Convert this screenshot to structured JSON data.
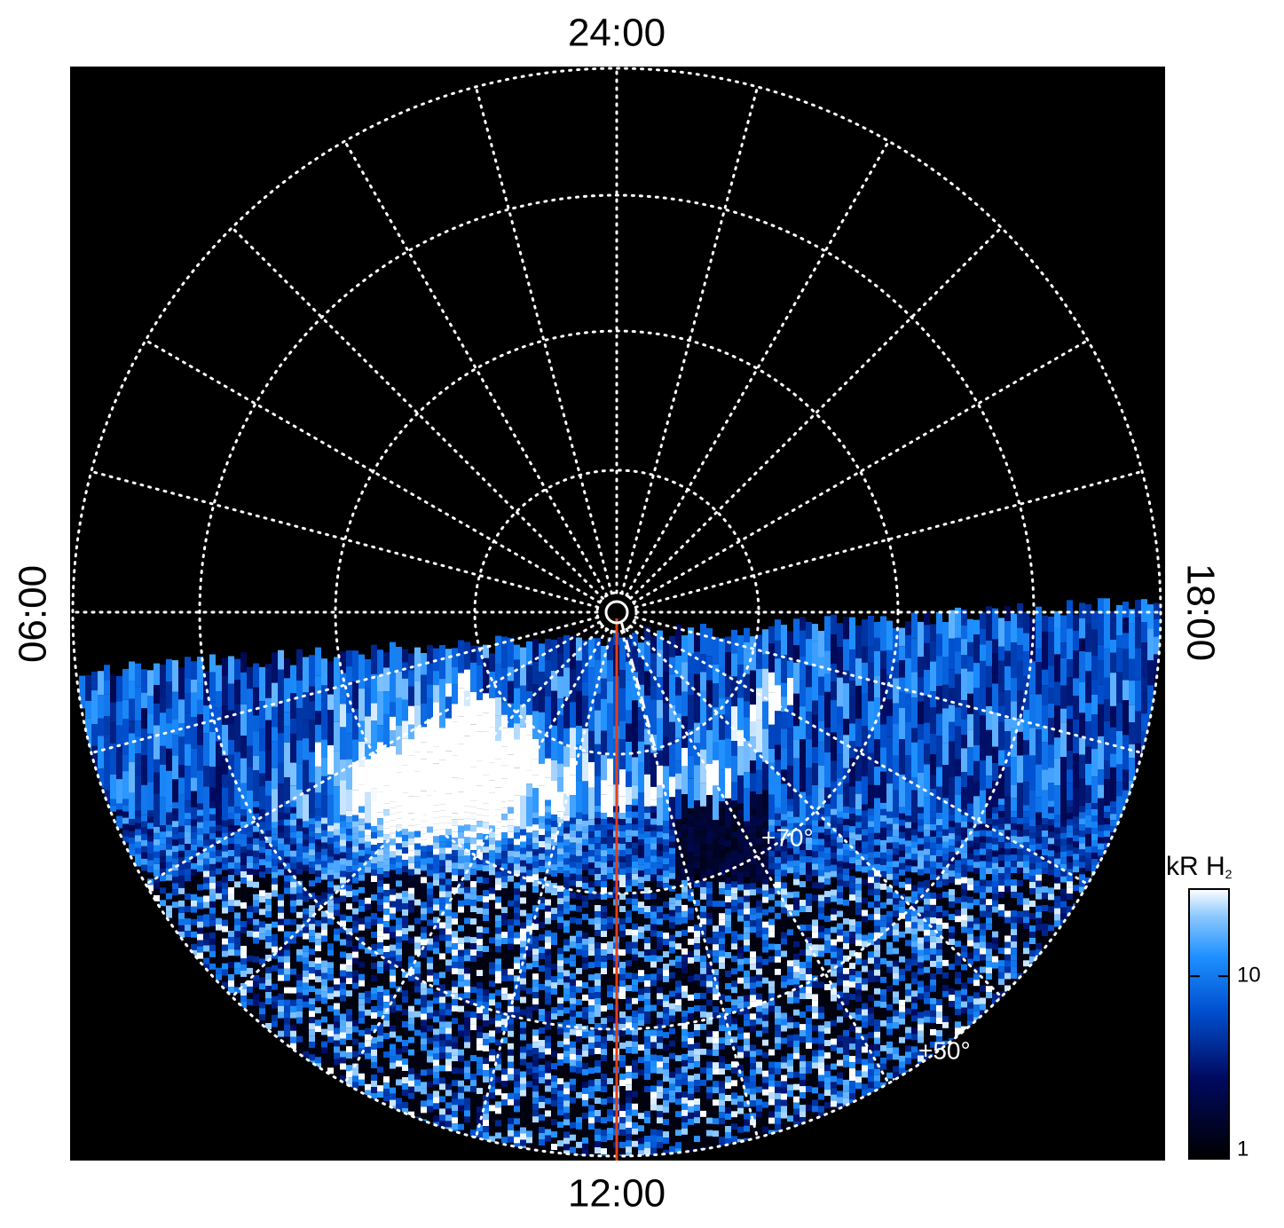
{
  "map": {
    "local_time_labels": {
      "top": "24:00",
      "left": "06:00",
      "right": "18:00",
      "bottom": "12:00"
    },
    "latitude_labels": [
      "+70°",
      "+50°"
    ],
    "colorbar": {
      "label": "kR H",
      "label_sub": "2",
      "scale": "log",
      "lim": [
        1,
        30
      ],
      "ticks": [
        1,
        10
      ]
    }
  }
}
